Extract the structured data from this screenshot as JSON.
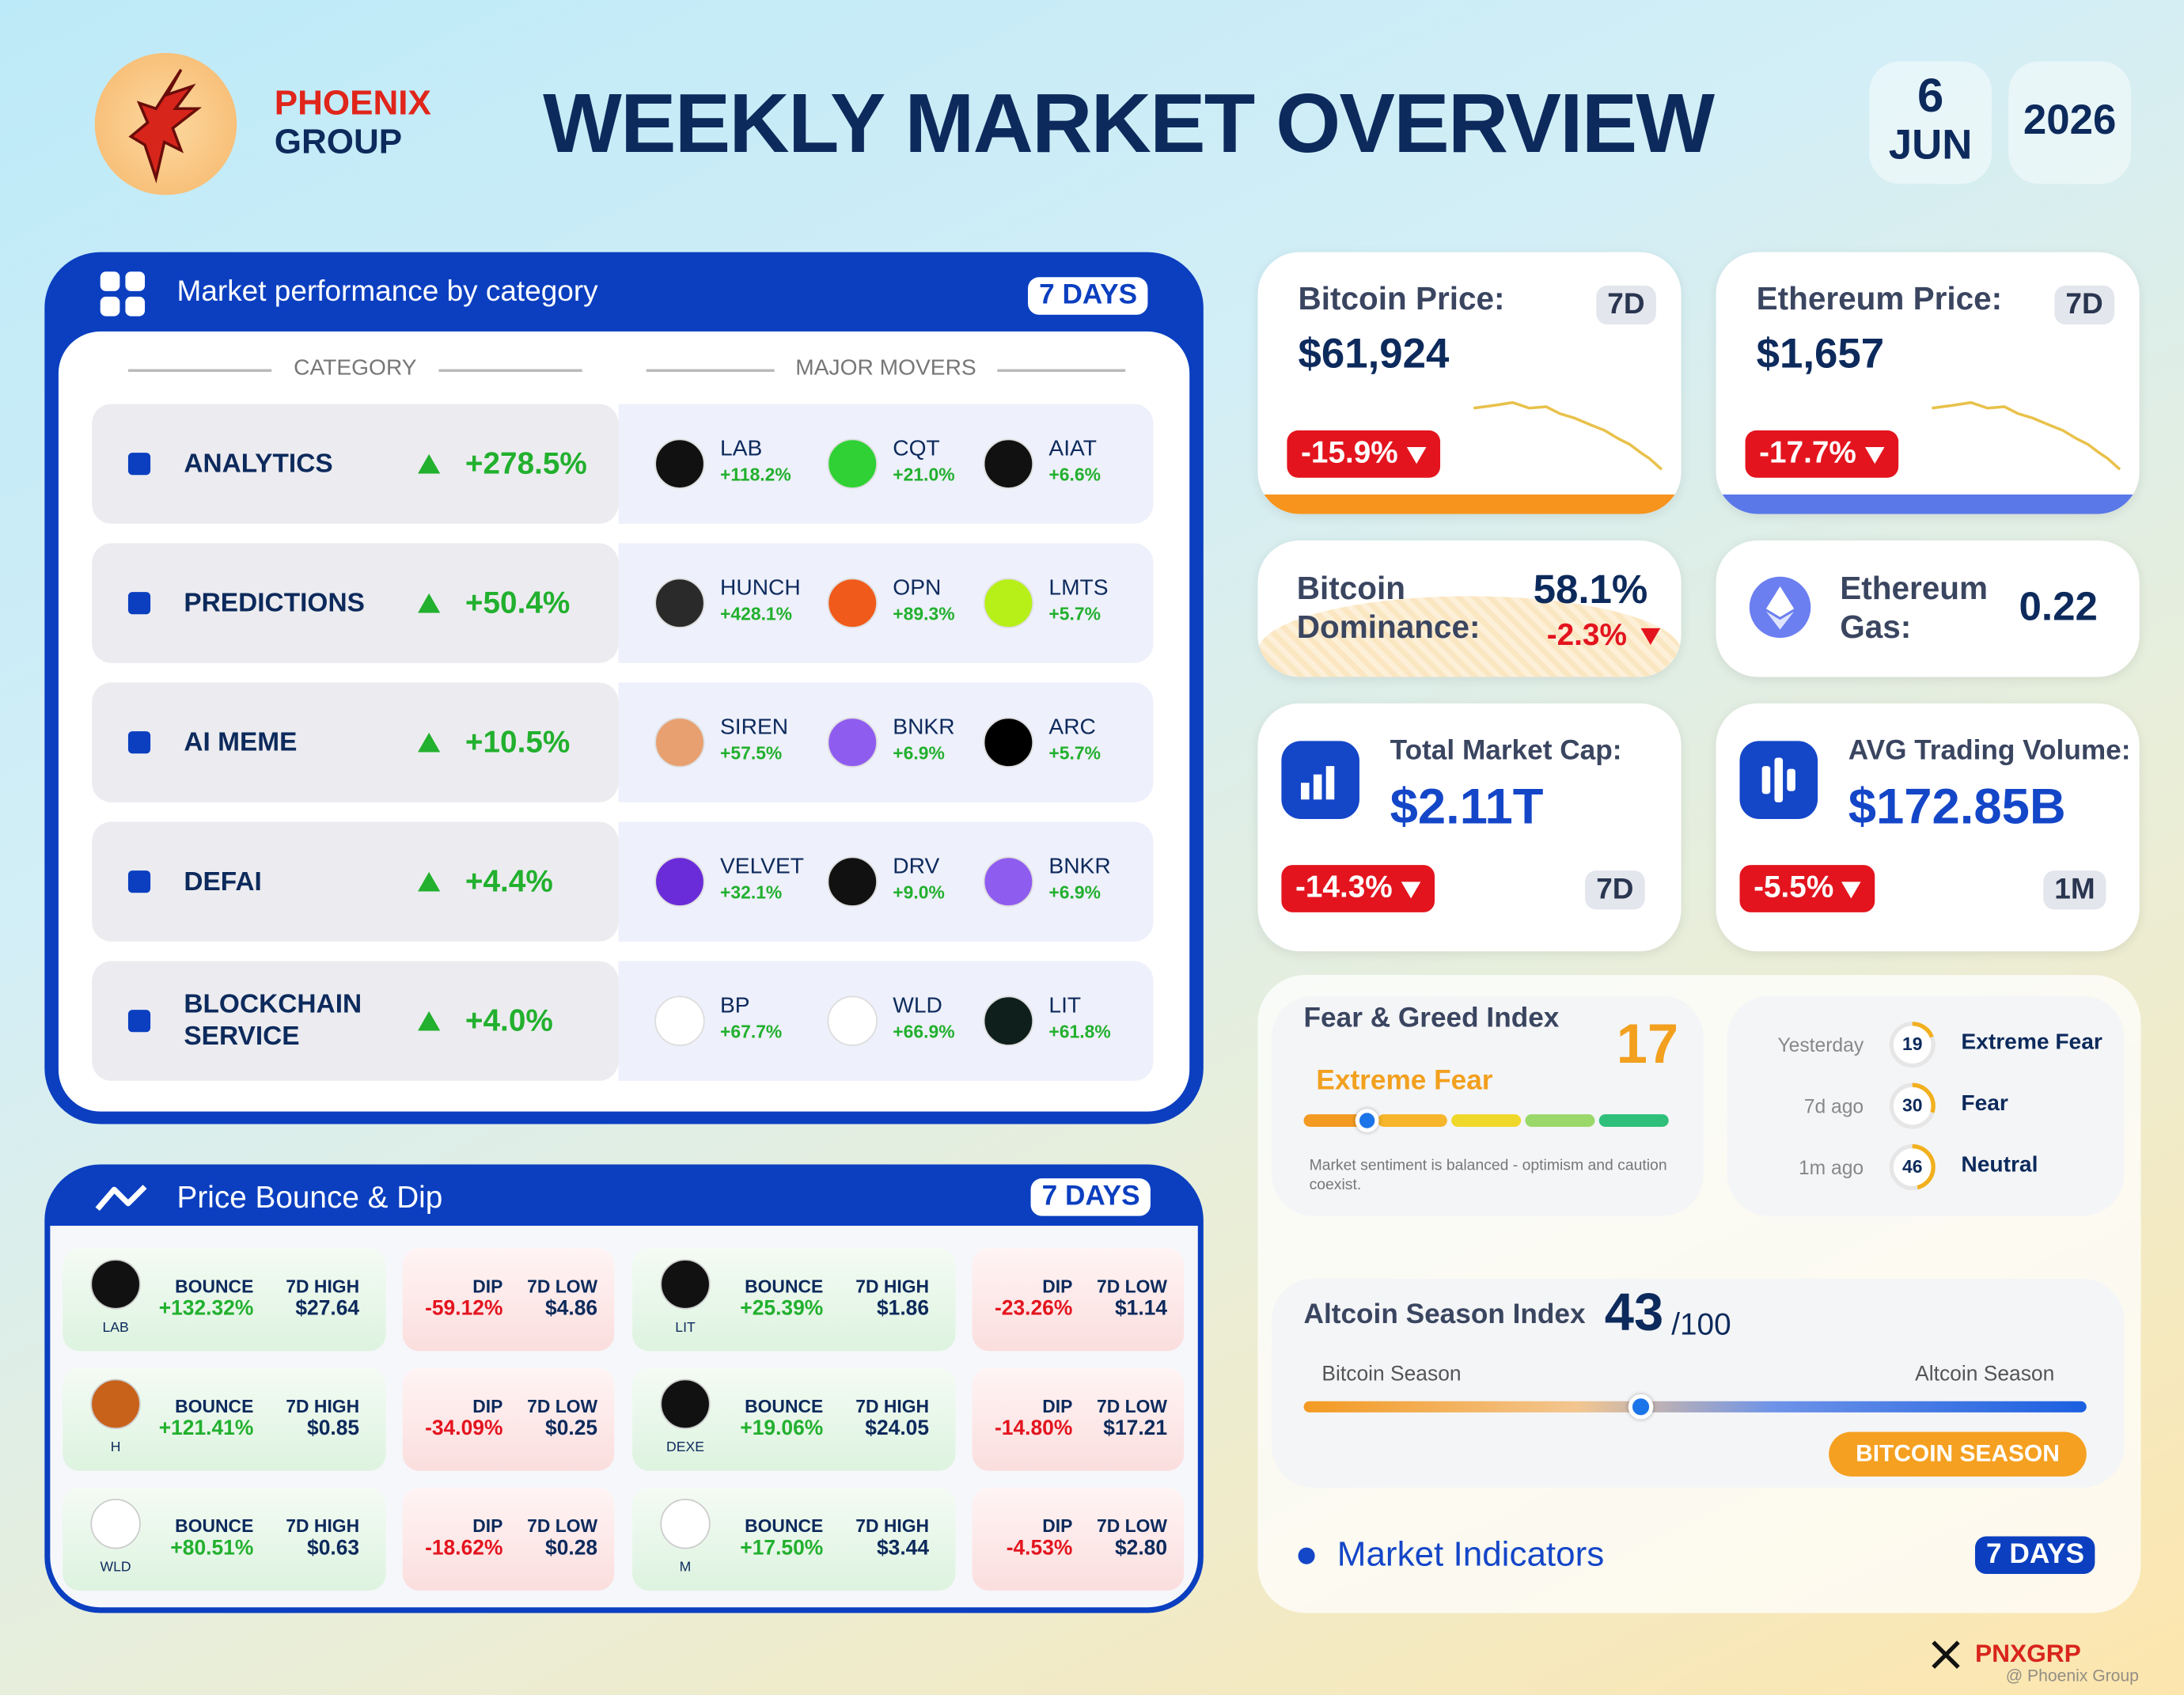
{
  "header": {
    "brand": [
      "PHOENIX",
      "GROUP"
    ],
    "title": "WEEKLY MARKET OVERVIEW",
    "day": "6",
    "month": "JUN",
    "year": "2026"
  },
  "categories": {
    "title": "Market performance by category",
    "period": "7 DAYS",
    "col_category": "CATEGORY",
    "col_movers": "MAJOR MOVERS",
    "rows": [
      {
        "name": "ANALYTICS",
        "change": "+278.5%",
        "movers": [
          {
            "symbol": "LAB",
            "change": "+118.2%"
          },
          {
            "symbol": "CQT",
            "change": "+21.0%"
          },
          {
            "symbol": "AIAT",
            "change": "+6.6%"
          }
        ]
      },
      {
        "name": "PREDICTIONS",
        "change": "+50.4%",
        "movers": [
          {
            "symbol": "HUNCH",
            "change": "+428.1%"
          },
          {
            "symbol": "OPN",
            "change": "+89.3%"
          },
          {
            "symbol": "LMTS",
            "change": "+5.7%"
          }
        ]
      },
      {
        "name": "AI MEME",
        "change": "+10.5%",
        "movers": [
          {
            "symbol": "SIREN",
            "change": "+57.5%"
          },
          {
            "symbol": "BNKR",
            "change": "+6.9%"
          },
          {
            "symbol": "ARC",
            "change": "+5.7%"
          }
        ]
      },
      {
        "name": "DEFAI",
        "change": "+4.4%",
        "movers": [
          {
            "symbol": "VELVET",
            "change": "+32.1%"
          },
          {
            "symbol": "DRV",
            "change": "+9.0%"
          },
          {
            "symbol": "BNKR",
            "change": "+6.9%"
          }
        ]
      },
      {
        "name": "BLOCKCHAIN SERVICE",
        "change": "+4.0%",
        "movers": [
          {
            "symbol": "BP",
            "change": "+67.7%"
          },
          {
            "symbol": "WLD",
            "change": "+66.9%"
          },
          {
            "symbol": "LIT",
            "change": "+61.8%"
          }
        ]
      }
    ]
  },
  "bounce_dip": {
    "title": "Price Bounce & Dip",
    "period": "7 DAYS",
    "labels": {
      "bounce": "BOUNCE",
      "high": "7D HIGH",
      "dip": "DIP",
      "low": "7D LOW"
    },
    "items": [
      {
        "token": "LAB",
        "bounce": "+132.32%",
        "high": "$27.64",
        "dip": "-59.12%",
        "low": "$4.86"
      },
      {
        "token": "LIT",
        "bounce": "+25.39%",
        "high": "$1.86",
        "dip": "-23.26%",
        "low": "$1.14"
      },
      {
        "token": "H",
        "bounce": "+121.41%",
        "high": "$0.85",
        "dip": "-34.09%",
        "low": "$0.25"
      },
      {
        "token": "DEXE",
        "bounce": "+19.06%",
        "high": "$24.05",
        "dip": "-14.80%",
        "low": "$17.21"
      },
      {
        "token": "WLD",
        "bounce": "+80.51%",
        "high": "$0.63",
        "dip": "-18.62%",
        "low": "$0.28"
      },
      {
        "token": "M",
        "bounce": "+17.50%",
        "high": "$3.44",
        "dip": "-4.53%",
        "low": "$2.80"
      }
    ]
  },
  "bitcoin": {
    "label": "Bitcoin Price:",
    "period": "7D",
    "price": "$61,924",
    "change": "-15.9%"
  },
  "ethereum": {
    "label": "Ethereum Price:",
    "period": "7D",
    "price": "$1,657",
    "change": "-17.7%"
  },
  "dominance": {
    "label": "Bitcoin Dominance:",
    "value": "58.1%",
    "change": "-2.3%"
  },
  "gas": {
    "label": "Ethereum Gas:",
    "value": "0.22"
  },
  "market_cap": {
    "label": "Total Market Cap:",
    "value": "$2.11T",
    "change": "-14.3%",
    "period": "7D"
  },
  "volume": {
    "label": "AVG Trading Volume:",
    "value": "$172.85B",
    "change": "-5.5%",
    "period": "1M"
  },
  "fear_greed": {
    "title": "Fear & Greed Index",
    "value": "17",
    "label": "Extreme Fear",
    "note": "Market sentiment is balanced - optimism and caution coexist.",
    "history": [
      {
        "when": "Yesterday",
        "value": "19",
        "label": "Extreme Fear"
      },
      {
        "when": "7d ago",
        "value": "30",
        "label": "Fear"
      },
      {
        "when": "1m ago",
        "value": "46",
        "label": "Neutral"
      }
    ]
  },
  "altcoin": {
    "title": "Altcoin Season Index",
    "value": "43",
    "scale": "/100",
    "left": "Bitcoin Season",
    "right": "Altcoin Season",
    "badge": "BITCOIN SEASON"
  },
  "indicators": {
    "title": "Market Indicators",
    "period": "7 DAYS"
  },
  "footer": {
    "handle": "PNXGRP",
    "watermark": "@ Phoenix Group"
  }
}
